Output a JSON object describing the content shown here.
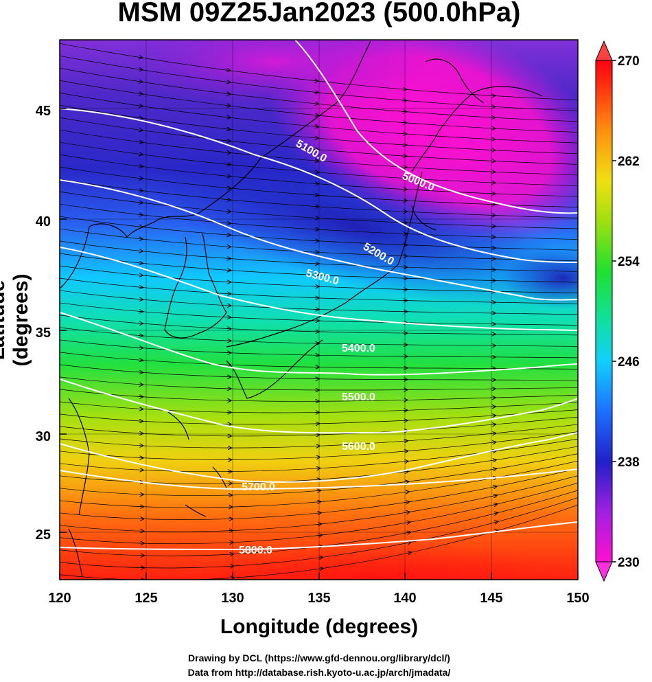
{
  "title": "MSM 09Z25Jan2023 (500.0hPa)",
  "xlabel": "Longitude (degrees)",
  "ylabel": "Latitude  (degrees)",
  "xticks": [
    "120",
    "125",
    "130",
    "135",
    "140",
    "145",
    "150"
  ],
  "yticks": [
    "25",
    "30",
    "35",
    "40",
    "45"
  ],
  "colorbar": {
    "ticks": [
      "230",
      "238",
      "246",
      "254",
      "262",
      "270"
    ],
    "min": 230,
    "max": 270,
    "colors": [
      "#ff10d0",
      "#a020e0",
      "#2020c8",
      "#1e70ff",
      "#10d0ff",
      "#10e0a0",
      "#20e030",
      "#a0e010",
      "#f0e010",
      "#ff9010",
      "#ff3010",
      "#ff0010"
    ]
  },
  "contour_labels": [
    "5000.0",
    "5100.0",
    "5200.0",
    "5300.0",
    "5400.0",
    "5500.0",
    "5600.0",
    "5700.0",
    "5800.0"
  ],
  "credits": [
    "Drawing by DCL (https://www.gfd-dennou.org/library/dcl/)",
    "Data from http://database.rish.kyoto-u.ac.jp/arch/jmadata/"
  ],
  "map_extent": {
    "lon": [
      120,
      150
    ],
    "lat": [
      22.5,
      47.5
    ]
  }
}
